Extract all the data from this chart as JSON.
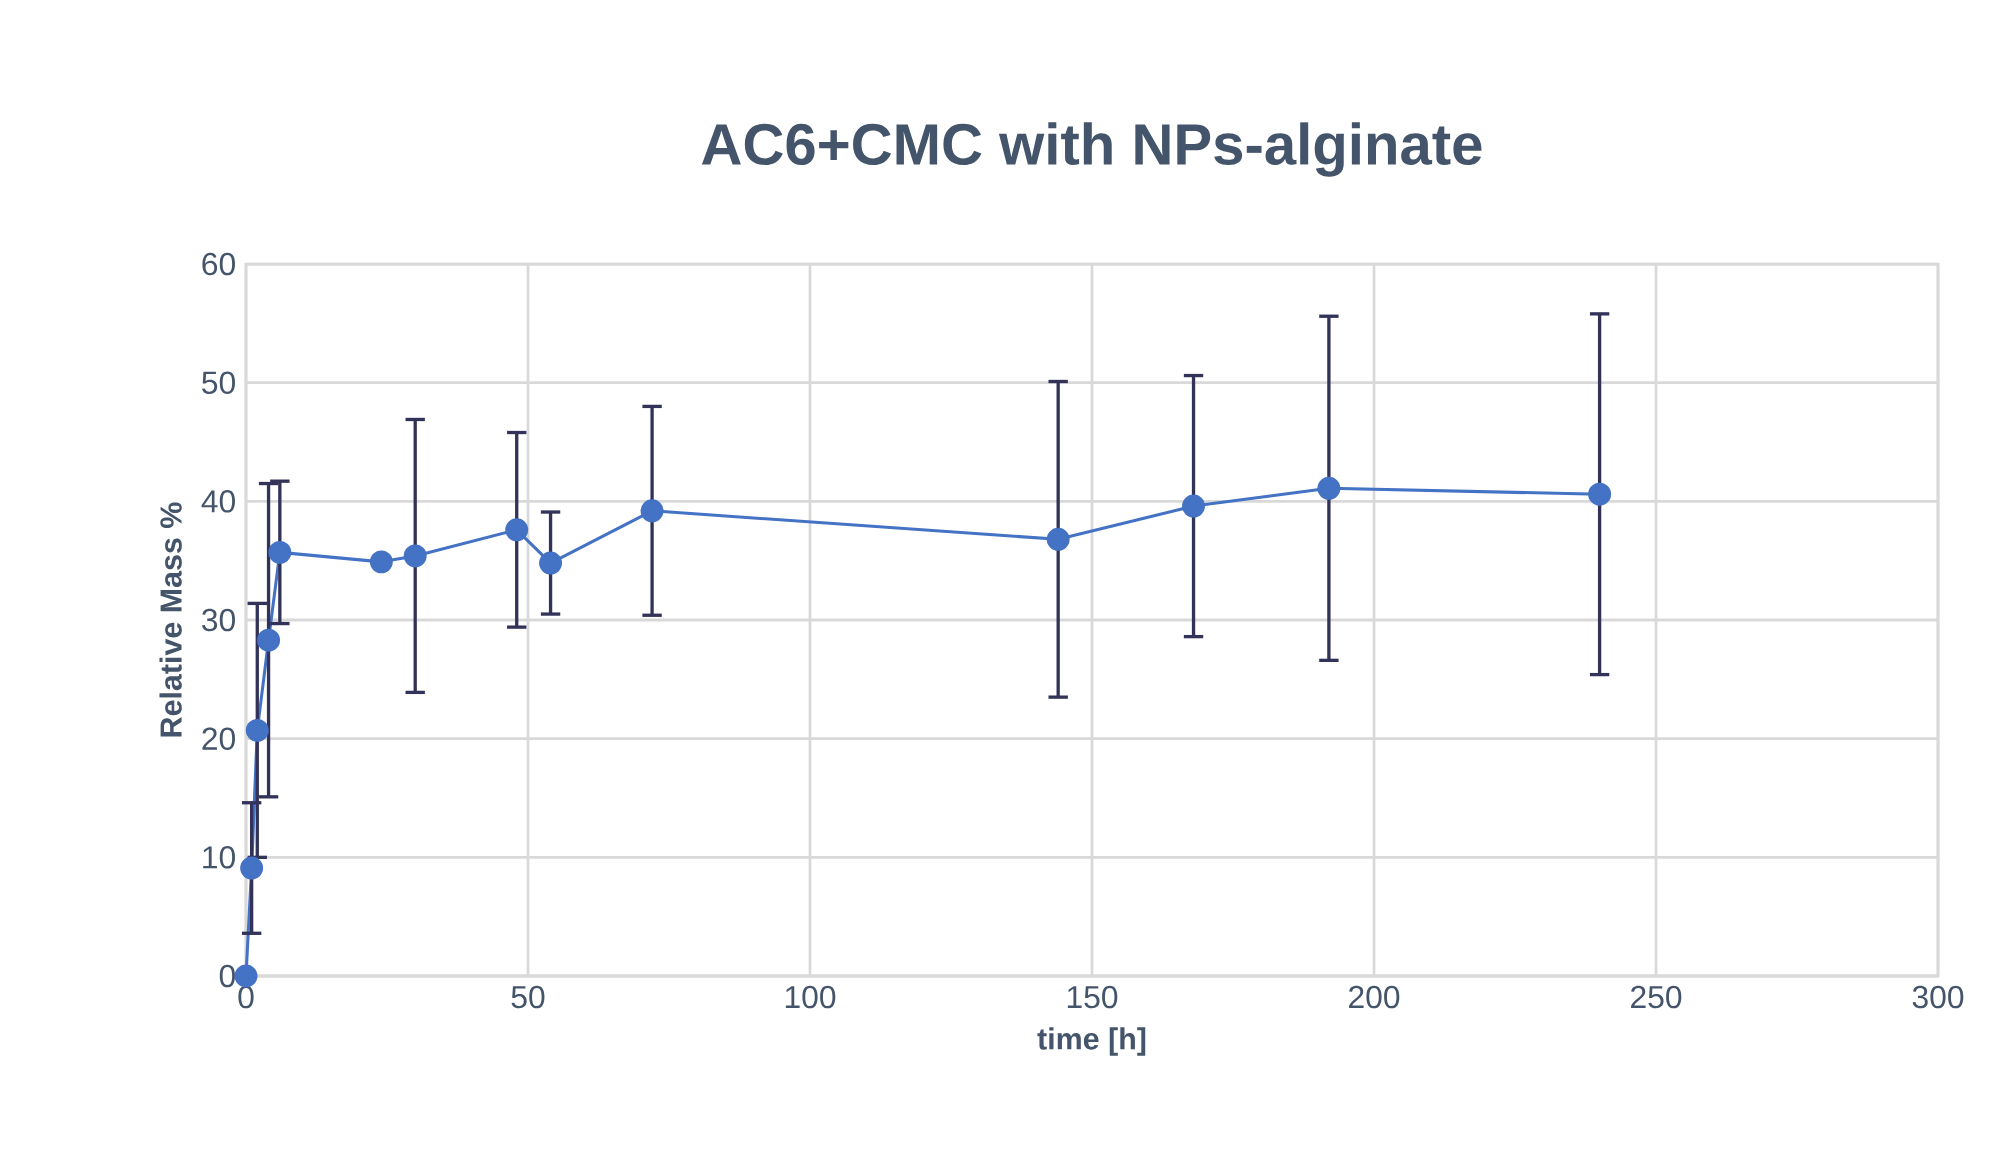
{
  "chart_data": {
    "type": "line",
    "title": "AC6+CMC with NPs-alginate",
    "xlabel": "time [h]",
    "ylabel": "Relative Mass %",
    "x": [
      0,
      1,
      2,
      4,
      6,
      24,
      30,
      48,
      54,
      72,
      144,
      168,
      192,
      240
    ],
    "series": [
      {
        "color": "#4472c4",
        "values": [
          0,
          9.1,
          20.7,
          28.3,
          35.7,
          34.9,
          35.4,
          37.6,
          34.8,
          39.2,
          36.8,
          39.6,
          41.1,
          40.6
        ],
        "errors": [
          null,
          5.5,
          10.7,
          13.2,
          6,
          null,
          11.5,
          8.2,
          4.3,
          8.8,
          13.3,
          11,
          14.5,
          15.2
        ]
      }
    ],
    "xlim": [
      0,
      300
    ],
    "xticks": [
      0,
      50,
      100,
      150,
      200,
      250,
      300
    ],
    "ylim": [
      0,
      60
    ],
    "yticks": [
      0,
      10,
      20,
      30,
      40,
      50,
      60
    ],
    "grid": true,
    "marker": "circle"
  }
}
